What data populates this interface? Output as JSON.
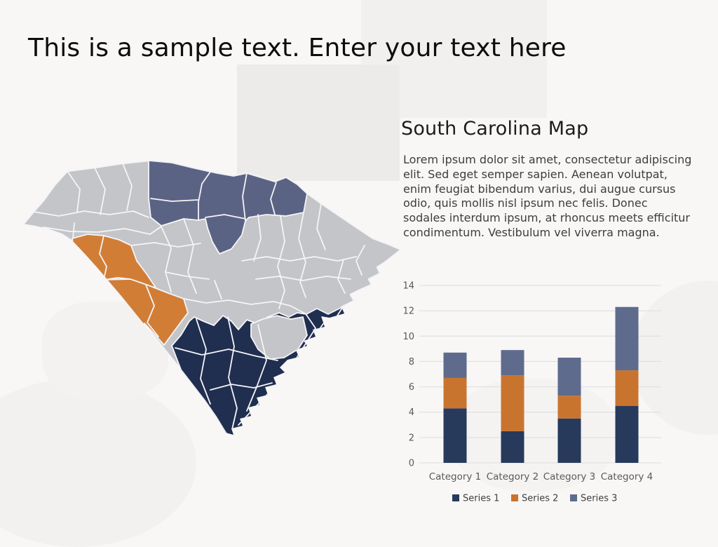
{
  "slide": {
    "title": "This is a sample text. Enter your text here",
    "section": {
      "heading": "South Carolina Map",
      "body": "Lorem ipsum dolor sit amet, consectetur adipiscing elit. Sed eget semper sapien. Aenean volutpat, enim feugiat bibendum varius, dui augue cursus odio, quis mollis nisl ipsum nec felis. Donec sodales interdum ipsum, at rhoncus meets efficitur condimentum. Vestibulum vel viverra magna."
    }
  },
  "map": {
    "name": "South Carolina county map",
    "colors": {
      "default": "#c4c5c8",
      "slate": "#5b6385",
      "orange": "#d27d36",
      "navy": "#202e50",
      "border": "#f5f5f7"
    },
    "regions": [
      {
        "id": "north-border-counties",
        "color": "slate"
      },
      {
        "id": "west-central-counties",
        "color": "orange"
      },
      {
        "id": "southern-lowcountry-counties",
        "color": "navy"
      },
      {
        "id": "remaining-counties",
        "color": "default"
      }
    ]
  },
  "chart_data": {
    "type": "bar",
    "stacked": true,
    "categories": [
      "Category 1",
      "Category 2",
      "Category 3",
      "Category 4"
    ],
    "series": [
      {
        "name": "Series 1",
        "color": "#273a5c",
        "values": [
          4.3,
          2.5,
          3.5,
          4.5
        ]
      },
      {
        "name": "Series 2",
        "color": "#c9742e",
        "values": [
          2.4,
          4.4,
          1.8,
          2.8
        ]
      },
      {
        "name": "Series 3",
        "color": "#5e6b8d",
        "values": [
          2.0,
          2.0,
          3.0,
          5.0
        ]
      }
    ],
    "title": "",
    "xlabel": "",
    "ylabel": "",
    "ylim": [
      0,
      14
    ],
    "ytick_step": 2,
    "grid": true,
    "legend_position": "bottom"
  }
}
